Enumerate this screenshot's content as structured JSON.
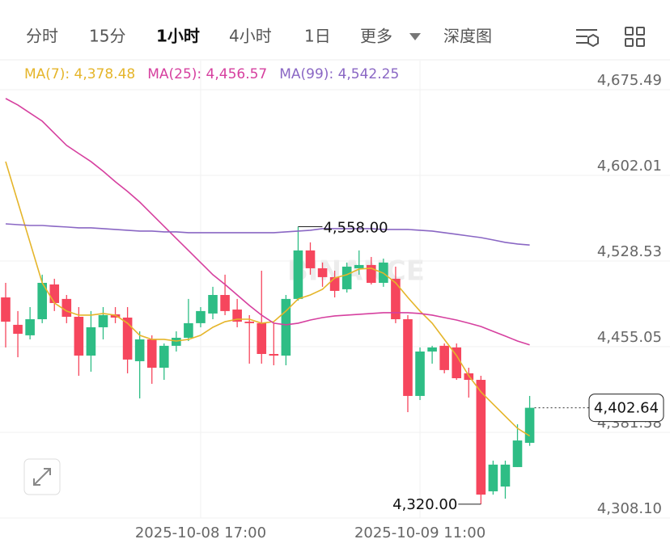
{
  "header": {
    "tabs": [
      "分时",
      "15分",
      "1小时",
      "4小时",
      "1日",
      "更多",
      "深度图"
    ],
    "active_tab": 2
  },
  "chart_data": {
    "type": "candlestick",
    "watermark": "BINANCE",
    "x": [
      null,
      null,
      null,
      null,
      null,
      null,
      null,
      null,
      null,
      null,
      null,
      null,
      null,
      null,
      null,
      null,
      "2025-10-08 17:00",
      null,
      null,
      null,
      null,
      null,
      null,
      null,
      null,
      null,
      null,
      null,
      null,
      null,
      null,
      null,
      null,
      null,
      "2025-10-09 11:00",
      null,
      null,
      null,
      null,
      null,
      null,
      null,
      null,
      null
    ],
    "open": [
      4497.3,
      4473.8,
      4464.8,
      4478.6,
      4508.4,
      4496.0,
      4480.7,
      4447.4,
      4471.7,
      4482.8,
      4480.0,
      4442.6,
      4461.3,
      4437.0,
      4455.8,
      4462.7,
      4475.2,
      4483.5,
      4499.4,
      4486.9,
      4476.5,
      4475.2,
      4448.8,
      4447.4,
      4496.0,
      4537.6,
      4522.3,
      4514.7,
      4504.3,
      4522.3,
      4525.1,
      4509.8,
      4513.3,
      4478.6,
      4412.8,
      4450.9,
      4455.8,
      4454.4,
      4432.2,
      4426.6,
      4331.0,
      4335.1,
      4351.8,
      4372.6
    ],
    "high": [
      4509.8,
      4485.6,
      4489.0,
      4516.8,
      4513.3,
      4499.4,
      4489.0,
      4485.6,
      4489.0,
      4489.0,
      4489.0,
      4468.2,
      4464.8,
      4457.8,
      4468.2,
      4496.0,
      4489.0,
      4506.4,
      4516.8,
      4496.0,
      4482.1,
      4520.2,
      4475.2,
      4499.4,
      4558.0,
      4544.5,
      4527.2,
      4520.2,
      4527.2,
      4537.6,
      4532.0,
      4530.6,
      4523.7,
      4482.1,
      4454.4,
      4455.8,
      4457.8,
      4457.8,
      4437.0,
      4430.1,
      4357.3,
      4357.3,
      4388.5,
      4412.8
    ],
    "low": [
      4454.4,
      4446.0,
      4461.3,
      4475.2,
      4485.6,
      4475.2,
      4430.1,
      4433.6,
      4461.3,
      4475.2,
      4432.2,
      4410.7,
      4423.2,
      4426.6,
      4450.9,
      4459.9,
      4471.7,
      4478.6,
      4482.1,
      4471.7,
      4440.5,
      4440.5,
      4439.1,
      4439.1,
      4494.6,
      4516.8,
      4506.4,
      4497.3,
      4501.5,
      4516.8,
      4508.4,
      4506.4,
      4475.2,
      4398.9,
      4409.3,
      4440.5,
      4432.2,
      4426.6,
      4411.4,
      4320.0,
      4328.2,
      4324.7,
      4351.8,
      4370.0
    ],
    "close": [
      4476.5,
      4466.1,
      4478.6,
      4509.8,
      4492.5,
      4480.7,
      4447.4,
      4471.7,
      4482.1,
      4480.0,
      4444.0,
      4461.3,
      4437.0,
      4455.8,
      4462.7,
      4475.2,
      4485.6,
      4499.4,
      4485.6,
      4476.5,
      4475.2,
      4448.8,
      4447.4,
      4496.0,
      4537.6,
      4522.3,
      4514.7,
      4502.9,
      4523.7,
      4525.1,
      4509.8,
      4527.2,
      4478.6,
      4412.8,
      4450.9,
      4454.4,
      4435.0,
      4428.0,
      4426.6,
      4328.2,
      4353.9,
      4353.9,
      4374.6,
      4402.64
    ],
    "up_color": "#2ebd85",
    "down_color": "#f6465d",
    "series": [
      {
        "name": "MA(7): 4,378.48",
        "color": "#e5b52a",
        "values": [
          4613.8,
          4579.1,
          4544.5,
          4509.8,
          4492.5,
          4485.6,
          4482.1,
          4482.1,
          4483.5,
          4482.1,
          4475.2,
          4464.8,
          4461.3,
          4461.3,
          4459.9,
          4461.3,
          4464.8,
          4471.7,
          4476.5,
          4478.6,
          4478.6,
          4475.2,
          4476.5,
          4485.6,
          4496.0,
          4499.4,
          4504.3,
          4514.0,
          4516.8,
          4521.6,
          4522.3,
          4518.1,
          4509.8,
          4497.3,
          4485.6,
          4475.2,
          4461.3,
          4447.4,
          4430.1,
          4416.2,
          4405.8,
          4395.4,
          4385.0,
          4378.48
        ]
      },
      {
        "name": "MA(25): 4,456.57",
        "color": "#d6409f",
        "values": [
          4667.9,
          4662.3,
          4655.4,
          4648.5,
          4638.1,
          4627.7,
          4620.7,
          4613.8,
          4605.5,
          4596.5,
          4588.2,
          4579.1,
          4568.7,
          4558.3,
          4547.9,
          4537.6,
          4527.2,
          4516.8,
          4508.4,
          4499.4,
          4490.4,
          4482.1,
          4475.2,
          4473.8,
          4475.2,
          4477.9,
          4480.0,
          4481.4,
          4482.1,
          4482.8,
          4483.5,
          4484.2,
          4484.2,
          4484.2,
          4483.5,
          4482.1,
          4480.0,
          4477.9,
          4475.2,
          4472.4,
          4468.2,
          4464.1,
          4459.9,
          4456.57
        ]
      },
      {
        "name": "MA(99): 4,542.25",
        "color": "#8a67c4",
        "values": [
          4560.4,
          4559.7,
          4559.0,
          4559.0,
          4558.3,
          4557.7,
          4557.0,
          4557.0,
          4556.3,
          4555.6,
          4554.9,
          4554.2,
          4554.2,
          4553.5,
          4553.5,
          4552.8,
          4552.8,
          4552.8,
          4552.8,
          4552.8,
          4552.8,
          4552.8,
          4552.8,
          4553.5,
          4554.2,
          4554.9,
          4556.3,
          4556.3,
          4556.3,
          4556.3,
          4556.3,
          4555.6,
          4555.6,
          4555.6,
          4554.9,
          4554.2,
          4552.8,
          4551.4,
          4550.0,
          4548.6,
          4546.6,
          4544.5,
          4543.1,
          4542.25
        ]
      }
    ],
    "ylim": [
      4308.1,
      4700.4
    ],
    "yticks": [
      {
        "value": 4308.1,
        "label": "4,308.10"
      },
      {
        "value": 4381.58,
        "label": "4,381.58"
      },
      {
        "value": 4455.05,
        "label": "4,455.05"
      },
      {
        "value": 4528.53,
        "label": "4,528.53"
      },
      {
        "value": 4602.01,
        "label": "4,602.01"
      },
      {
        "value": 4675.49,
        "label": "4,675.49"
      }
    ],
    "grid": true,
    "high_marker": {
      "value": 4558.0,
      "label": "4,558.00"
    },
    "low_marker": {
      "value": 4320.0,
      "label": "4,320.00"
    },
    "last_price": {
      "value": 4402.64,
      "label": "4,402.64"
    }
  }
}
